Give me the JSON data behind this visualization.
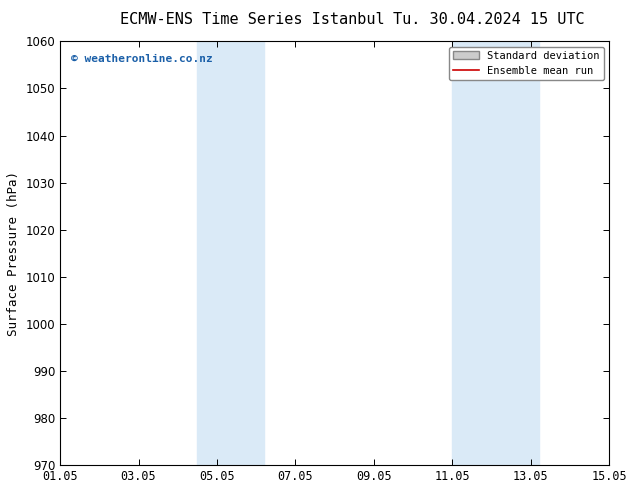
{
  "title_left": "ECMW-ENS Time Series Istanbul",
  "title_right": "Tu. 30.04.2024 15 UTC",
  "ylabel": "Surface Pressure (hPa)",
  "ylim": [
    970,
    1060
  ],
  "yticks": [
    970,
    980,
    990,
    1000,
    1010,
    1020,
    1030,
    1040,
    1050,
    1060
  ],
  "xtick_labels": [
    "01.05",
    "03.05",
    "05.05",
    "07.05",
    "09.05",
    "11.05",
    "13.05",
    "15.05"
  ],
  "xtick_positions": [
    0,
    2,
    4,
    6,
    8,
    10,
    12,
    14
  ],
  "xlim": [
    0,
    14
  ],
  "shaded_bands": [
    {
      "xmin": 3.5,
      "xmax": 5.2
    },
    {
      "xmin": 10.0,
      "xmax": 12.2
    }
  ],
  "shade_color": "#daeaf7",
  "background_color": "#ffffff",
  "watermark_text": "© weatheronline.co.nz",
  "watermark_color": "#1a5fa8",
  "legend_entries": [
    "Standard deviation",
    "Ensemble mean run"
  ],
  "legend_patch_color": "#cccccc",
  "legend_line_color": "#cc0000",
  "title_fontsize": 11,
  "axis_label_fontsize": 9,
  "tick_fontsize": 8.5,
  "legend_fontsize": 7.5
}
